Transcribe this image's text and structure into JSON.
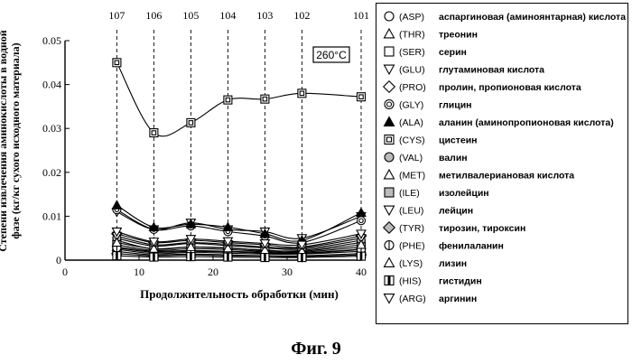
{
  "figure_caption": "Фиг. 9",
  "chart_data": {
    "type": "line",
    "xlabel": "Продолжительность обработки (мин)",
    "ylabel_lines": [
      "Степени извлечения аминокислоты в водной",
      "фазе (кг/кг сухого исходного материала)"
    ],
    "annotation": "260°C",
    "xlim": [
      0,
      40
    ],
    "ylim": [
      0,
      0.05
    ],
    "x_ticks": [
      0,
      10,
      20,
      30,
      40
    ],
    "y_ticks": [
      0,
      0.01,
      0.02,
      0.03,
      0.04,
      0.05
    ],
    "x_tick_labels": [
      "0",
      "10",
      "20",
      "30",
      "40"
    ],
    "y_tick_labels": [
      "0",
      "0.01",
      "0.02",
      "0.03",
      "0.04",
      "0.05"
    ],
    "sample_lines": [
      {
        "x": 7,
        "label": "107"
      },
      {
        "x": 12,
        "label": "106"
      },
      {
        "x": 17,
        "label": "105"
      },
      {
        "x": 22,
        "label": "104"
      },
      {
        "x": 27,
        "label": "103"
      },
      {
        "x": 32,
        "label": "102"
      },
      {
        "x": 40,
        "label": "101"
      }
    ],
    "x": [
      7,
      12,
      17,
      22,
      27,
      32,
      40
    ],
    "series": [
      {
        "code": "(ASP)",
        "name": "аспаргиновая (аминоянтарная) кислота",
        "marker": "circle",
        "values": [
          0.0045,
          0.0025,
          0.003,
          0.0028,
          0.0022,
          0.0022,
          0.004
        ]
      },
      {
        "code": "(THR)",
        "name": "треонин",
        "marker": "triangle-up",
        "values": [
          0.003,
          0.002,
          0.0022,
          0.002,
          0.0018,
          0.0016,
          0.0025
        ]
      },
      {
        "code": "(SER)",
        "name": "серин",
        "marker": "square",
        "values": [
          0.0025,
          0.0015,
          0.0018,
          0.0016,
          0.0014,
          0.0014,
          0.002
        ]
      },
      {
        "code": "(GLU)",
        "name": "глутаминовая кислота",
        "marker": "triangle-down",
        "values": [
          0.011,
          0.007,
          0.0085,
          0.007,
          0.0065,
          0.005,
          0.01
        ]
      },
      {
        "code": "(PRO)",
        "name": "пролин, пропионовая кислота",
        "marker": "diamond",
        "values": [
          0.006,
          0.004,
          0.0045,
          0.004,
          0.0035,
          0.003,
          0.0055
        ]
      },
      {
        "code": "(GLY)",
        "name": "глицин",
        "marker": "double-circle",
        "values": [
          0.0115,
          0.007,
          0.0078,
          0.0065,
          0.0055,
          0.004,
          0.009
        ]
      },
      {
        "code": "(ALA)",
        "name": "аланин (аминопропионовая кислота)",
        "marker": "triangle-up-filled",
        "values": [
          0.0125,
          0.0075,
          0.0082,
          0.0075,
          0.006,
          0.0045,
          0.0108
        ]
      },
      {
        "code": "(CYS)",
        "name": "цистеин",
        "marker": "double-square",
        "values": [
          0.045,
          0.029,
          0.0313,
          0.0365,
          0.0367,
          0.038,
          0.0372
        ]
      },
      {
        "code": "(VAL)",
        "name": "валин",
        "marker": "dotted-circle",
        "values": [
          0.005,
          0.0032,
          0.0038,
          0.0033,
          0.0028,
          0.0025,
          0.0045
        ]
      },
      {
        "code": "(MET)",
        "name": "метилвалериановая кислота",
        "marker": "triangle-up",
        "values": [
          0.002,
          0.0012,
          0.0014,
          0.0012,
          0.001,
          0.001,
          0.0015
        ]
      },
      {
        "code": "(ILE)",
        "name": "изолейцин",
        "marker": "dotted-square",
        "values": [
          0.0035,
          0.0022,
          0.0026,
          0.0024,
          0.002,
          0.0018,
          0.003
        ]
      },
      {
        "code": "(LEU)",
        "name": "лейцин",
        "marker": "triangle-down",
        "values": [
          0.0055,
          0.0035,
          0.004,
          0.0036,
          0.003,
          0.0028,
          0.005
        ]
      },
      {
        "code": "(TYR)",
        "name": "тирозин, тироксин",
        "marker": "dotted-diamond",
        "values": [
          0.0015,
          0.001,
          0.0012,
          0.001,
          0.0009,
          0.0008,
          0.0012
        ]
      },
      {
        "code": "(PHE)",
        "name": "фенилаланин",
        "marker": "circle-bar",
        "values": [
          0.0028,
          0.0018,
          0.002,
          0.0019,
          0.0016,
          0.0015,
          0.0024
        ]
      },
      {
        "code": "(LYS)",
        "name": "лизин",
        "marker": "triangle-up",
        "values": [
          0.004,
          0.0026,
          0.003,
          0.0027,
          0.0023,
          0.002,
          0.0035
        ]
      },
      {
        "code": "(HIS)",
        "name": "гистидин",
        "marker": "square-bar",
        "values": [
          0.001,
          0.0007,
          0.0008,
          0.0007,
          0.0006,
          0.0006,
          0.0009
        ]
      },
      {
        "code": "(ARG)",
        "name": "аргинин",
        "marker": "triangle-down",
        "values": [
          0.0065,
          0.0042,
          0.0048,
          0.0043,
          0.0038,
          0.0035,
          0.006
        ]
      }
    ],
    "curve_on_series": "(CYS)"
  }
}
